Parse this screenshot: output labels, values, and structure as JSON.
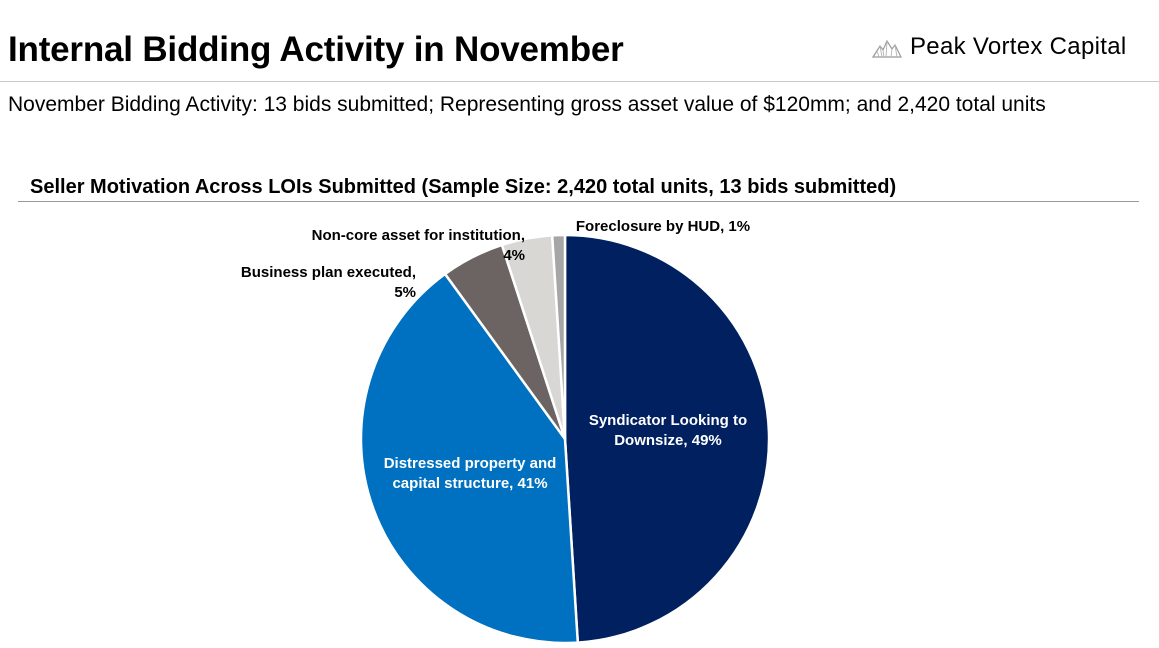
{
  "header": {
    "title": "Internal Bidding Activity in November",
    "logo_text": "Peak Vortex Capital",
    "subtitle": "November Bidding Activity: 13 bids submitted; Representing gross asset value of $120mm; and 2,420 total units"
  },
  "chart_data": {
    "type": "pie",
    "title": "Seller Motivation Across LOIs Submitted (Sample Size: 2,420 total units, 13 bids submitted)",
    "slices": [
      {
        "label_lines": [
          "Syndicator Looking to",
          "Downsize, 49%"
        ],
        "value": 49,
        "color": "#002060",
        "label_color": "#ffffff",
        "label_position": "inside"
      },
      {
        "label_lines": [
          "Distressed property and",
          "capital structure, 41%"
        ],
        "value": 41,
        "color": "#0070C0",
        "label_color": "#ffffff",
        "label_position": "inside"
      },
      {
        "label_lines": [
          "Business plan executed,",
          "5%"
        ],
        "value": 5,
        "color": "#6b6462",
        "label_color": "#000000",
        "label_position": "outside"
      },
      {
        "label_lines": [
          "Non-core asset for institution,",
          "4%"
        ],
        "value": 4,
        "color": "#d9d7d4",
        "label_color": "#000000",
        "label_position": "outside"
      },
      {
        "label_lines": [
          "Foreclosure by HUD, 1%"
        ],
        "value": 1,
        "color": "#a6a6a6",
        "label_color": "#000000",
        "label_position": "outside"
      }
    ]
  }
}
